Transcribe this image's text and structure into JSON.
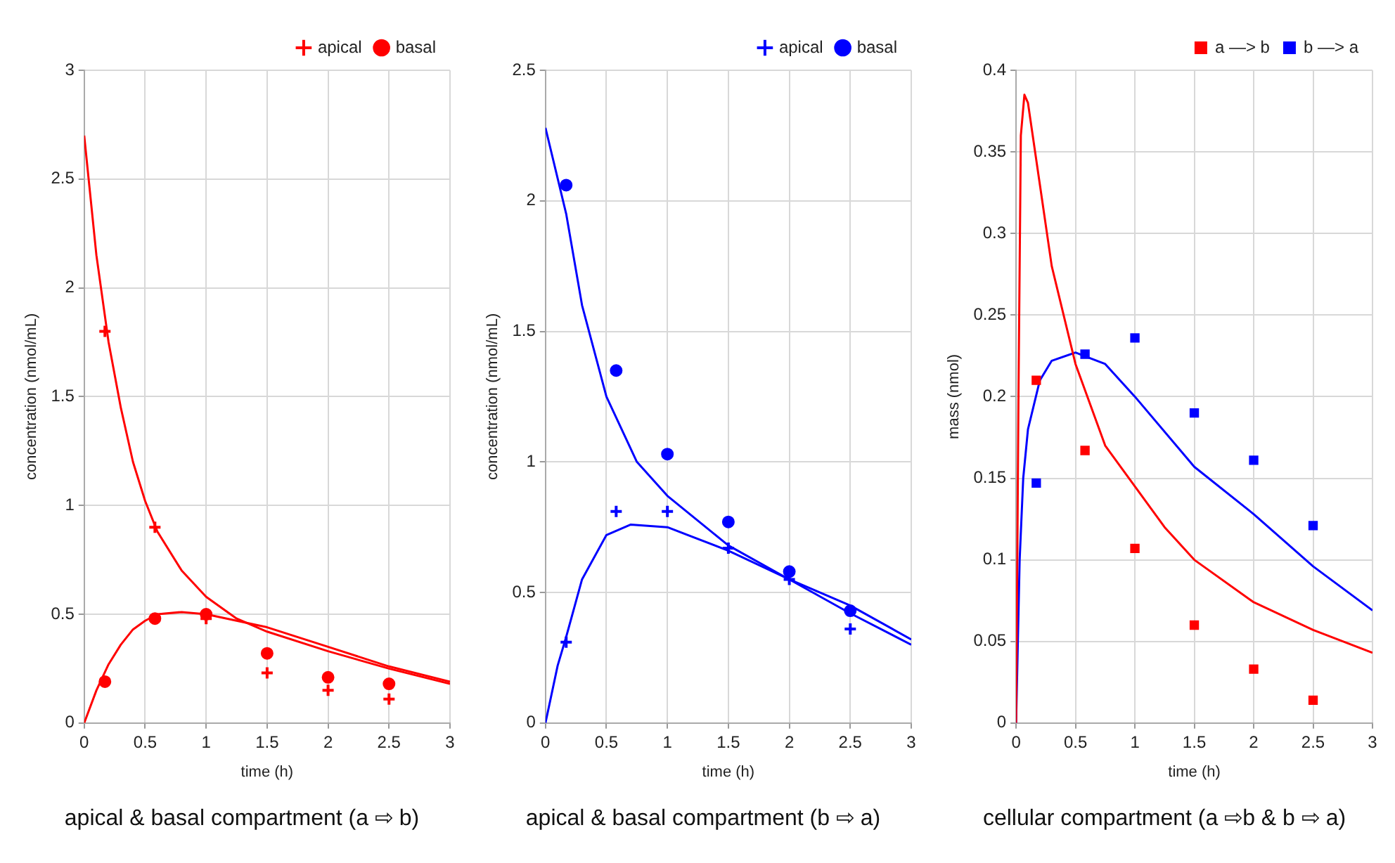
{
  "chart_data": [
    {
      "type": "scatter",
      "title": "apical & basal compartment (a ⇨ b)",
      "xlabel": "time (h)",
      "ylabel": "concentration (nmol/mL)",
      "xlim": [
        0,
        3
      ],
      "xticks": [
        0,
        0.5,
        1,
        1.5,
        2,
        2.5,
        3
      ],
      "ylim": [
        0,
        3
      ],
      "yticks": [
        0,
        0.5,
        1,
        1.5,
        2,
        2.5,
        3
      ],
      "grid": true,
      "legend": "top right",
      "series": [
        {
          "name": "apical",
          "color": "#ff0000",
          "marker": "cross",
          "x": [
            0.17,
            0.58,
            1,
            1.5,
            2,
            2.5
          ],
          "values": [
            1.8,
            0.9,
            0.48,
            0.23,
            0.15,
            0.11
          ]
        },
        {
          "name": "basal",
          "color": "#ff0000",
          "marker": "circle",
          "x": [
            0.17,
            0.58,
            1,
            1.5,
            2,
            2.5
          ],
          "values": [
            0.19,
            0.48,
            0.5,
            0.32,
            0.21,
            0.18
          ]
        },
        {
          "type": "line",
          "color": "#ff0000",
          "marker": "none",
          "x": [
            0,
            0.1,
            0.2,
            0.3,
            0.4,
            0.5,
            0.6,
            0.8,
            1,
            1.25,
            1.5,
            2,
            2.5,
            3
          ],
          "values": [
            2.7,
            2.15,
            1.75,
            1.45,
            1.2,
            1.02,
            0.88,
            0.7,
            0.58,
            0.48,
            0.42,
            0.33,
            0.25,
            0.18
          ]
        },
        {
          "type": "line",
          "color": "#ff0000",
          "marker": "none",
          "x": [
            0,
            0.1,
            0.2,
            0.3,
            0.4,
            0.5,
            0.6,
            0.8,
            1,
            1.5,
            2,
            2.5,
            3
          ],
          "values": [
            0,
            0.15,
            0.27,
            0.36,
            0.43,
            0.47,
            0.5,
            0.51,
            0.5,
            0.44,
            0.35,
            0.26,
            0.19
          ]
        }
      ]
    },
    {
      "type": "scatter",
      "title": "apical & basal compartment (b ⇨ a)",
      "xlabel": "time (h)",
      "ylabel": "concentration (nmol/mL)",
      "xlim": [
        0,
        3
      ],
      "xticks": [
        0,
        0.5,
        1,
        1.5,
        2,
        2.5,
        3
      ],
      "ylim": [
        0,
        2.5
      ],
      "yticks": [
        0,
        0.5,
        1,
        1.5,
        2,
        2.5
      ],
      "grid": true,
      "legend": "top right",
      "series": [
        {
          "name": "apical",
          "color": "#0000ff",
          "marker": "cross",
          "x": [
            0.17,
            0.58,
            1,
            1.5,
            2,
            2.5
          ],
          "values": [
            0.31,
            0.81,
            0.81,
            0.67,
            0.55,
            0.36
          ]
        },
        {
          "name": "basal",
          "color": "#0000ff",
          "marker": "circle",
          "x": [
            0.17,
            0.58,
            1,
            1.5,
            2,
            2.5
          ],
          "values": [
            2.06,
            1.35,
            1.03,
            0.77,
            0.58,
            0.43
          ]
        },
        {
          "type": "line",
          "color": "#0000ff",
          "marker": "none",
          "x": [
            0,
            0.17,
            0.3,
            0.5,
            0.75,
            1,
            1.5,
            2,
            2.5,
            3
          ],
          "values": [
            2.28,
            1.95,
            1.6,
            1.25,
            1,
            0.87,
            0.68,
            0.55,
            0.42,
            0.3
          ]
        },
        {
          "type": "line",
          "color": "#0000ff",
          "marker": "none",
          "x": [
            0,
            0.1,
            0.17,
            0.3,
            0.5,
            0.7,
            1,
            1.5,
            2,
            2.5,
            3
          ],
          "values": [
            0,
            0.22,
            0.33,
            0.55,
            0.72,
            0.76,
            0.75,
            0.66,
            0.55,
            0.45,
            0.32
          ]
        }
      ]
    },
    {
      "type": "scatter",
      "title": "cellular compartment (a ⇨b  & b ⇨ a)",
      "xlabel": "time (h)",
      "ylabel": "mass (nmol)",
      "xlim": [
        0,
        3
      ],
      "xticks": [
        0,
        0.5,
        1,
        1.5,
        2,
        2.5,
        3
      ],
      "ylim": [
        0,
        0.4
      ],
      "yticks": [
        0,
        0.05,
        0.1,
        0.15,
        0.2,
        0.25,
        0.3,
        0.35,
        0.4
      ],
      "grid": true,
      "legend": "top right",
      "series": [
        {
          "name": "a —> b",
          "color": "#ff0000",
          "marker": "square",
          "x": [
            0.17,
            0.58,
            1,
            1.5,
            2,
            2.5
          ],
          "values": [
            0.21,
            0.167,
            0.107,
            0.06,
            0.033,
            0.014
          ]
        },
        {
          "name": "b —> a",
          "color": "#0000ff",
          "marker": "square",
          "x": [
            0.17,
            0.58,
            1,
            1.5,
            2,
            2.5
          ],
          "values": [
            0.147,
            0.226,
            0.236,
            0.19,
            0.161,
            0.121
          ]
        },
        {
          "type": "line",
          "color": "#ff0000",
          "marker": "none",
          "x": [
            0,
            0.02,
            0.04,
            0.07,
            0.1,
            0.2,
            0.3,
            0.5,
            0.75,
            1,
            1.25,
            1.5,
            2,
            2.5,
            3
          ],
          "values": [
            0,
            0.2,
            0.36,
            0.385,
            0.38,
            0.33,
            0.28,
            0.22,
            0.17,
            0.145,
            0.12,
            0.1,
            0.074,
            0.057,
            0.043
          ]
        },
        {
          "type": "line",
          "color": "#0000ff",
          "marker": "none",
          "x": [
            0,
            0.03,
            0.06,
            0.1,
            0.2,
            0.3,
            0.5,
            0.75,
            1,
            1.5,
            2,
            2.5,
            3
          ],
          "values": [
            0,
            0.1,
            0.15,
            0.18,
            0.21,
            0.222,
            0.227,
            0.22,
            0.2,
            0.157,
            0.128,
            0.096,
            0.069
          ]
        }
      ]
    }
  ]
}
